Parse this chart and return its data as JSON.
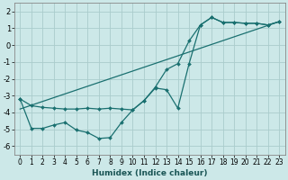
{
  "xlabel": "Humidex (Indice chaleur)",
  "background_color": "#cce8e8",
  "grid_color": "#aacccc",
  "line_color": "#1a7070",
  "xlim": [
    -0.5,
    23.5
  ],
  "ylim": [
    -6.5,
    2.5
  ],
  "xticks": [
    0,
    1,
    2,
    3,
    4,
    5,
    6,
    7,
    8,
    9,
    10,
    11,
    12,
    13,
    14,
    15,
    16,
    17,
    18,
    19,
    20,
    21,
    22,
    23
  ],
  "yticks": [
    -6,
    -5,
    -4,
    -3,
    -2,
    -1,
    0,
    1,
    2
  ],
  "line1_x": [
    0,
    1,
    2,
    3,
    4,
    5,
    6,
    7,
    8,
    9,
    10,
    11,
    12,
    13,
    14,
    15,
    16,
    17,
    18,
    19,
    20,
    21,
    22,
    23
  ],
  "line1_y": [
    -3.2,
    -3.6,
    -3.7,
    -3.75,
    -3.8,
    -3.8,
    -3.75,
    -3.8,
    -3.75,
    -3.8,
    -3.85,
    -3.3,
    -2.5,
    -1.45,
    -1.1,
    0.25,
    1.2,
    1.65,
    1.35,
    1.35,
    1.3,
    1.3,
    1.2,
    1.4
  ],
  "line2_x": [
    0,
    1,
    2,
    3,
    4,
    5,
    6,
    7,
    8,
    9,
    10,
    11,
    12,
    13,
    14,
    15,
    16,
    17,
    18,
    19,
    20,
    21,
    22,
    23
  ],
  "line2_y": [
    -3.2,
    -4.95,
    -4.95,
    -4.75,
    -4.6,
    -5.05,
    -5.2,
    -5.55,
    -5.5,
    -4.6,
    -3.85,
    -3.3,
    -2.55,
    -2.65,
    -3.75,
    -1.1,
    1.2,
    1.65,
    1.35,
    1.35,
    1.3,
    1.3,
    1.2,
    1.4
  ],
  "line3_x": [
    0,
    23
  ],
  "line3_y": [
    -3.8,
    1.4
  ]
}
